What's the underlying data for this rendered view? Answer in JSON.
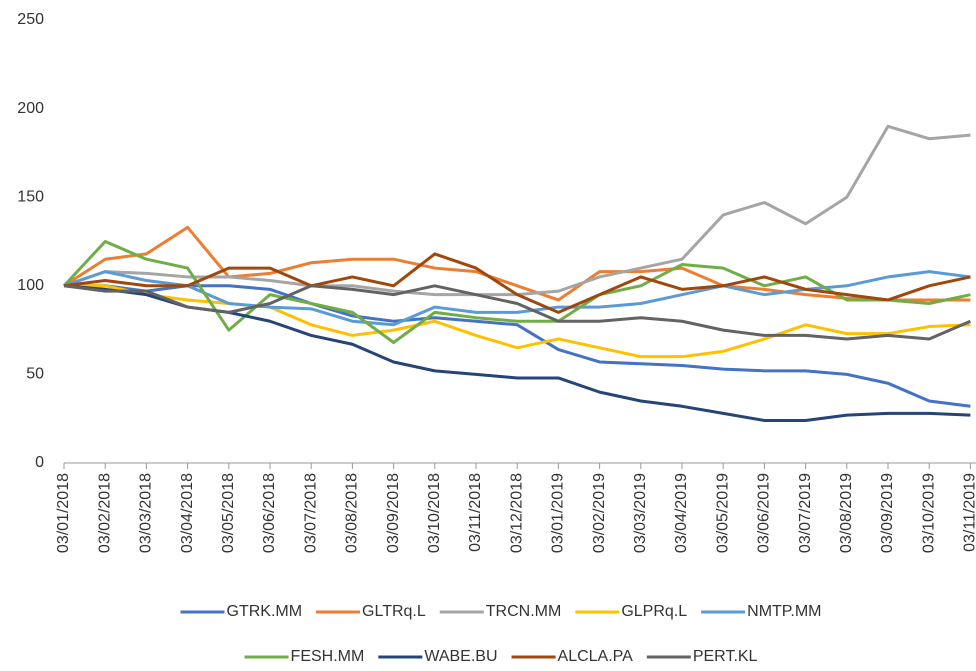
{
  "chart_data": {
    "type": "line",
    "categories": [
      "03/01/2018",
      "03/02/2018",
      "03/03/2018",
      "03/04/2018",
      "03/05/2018",
      "03/06/2018",
      "03/07/2018",
      "03/08/2018",
      "03/09/2018",
      "03/10/2018",
      "03/11/2018",
      "03/12/2018",
      "03/01/2019",
      "03/02/2019",
      "03/03/2019",
      "03/04/2019",
      "03/05/2019",
      "03/06/2019",
      "03/07/2019",
      "03/08/2019",
      "03/09/2019",
      "03/10/2019",
      "03/11/2019"
    ],
    "series": [
      {
        "name": "GTRK.MM",
        "color": "#4472c4",
        "values": [
          100,
          100,
          97,
          100,
          100,
          98,
          90,
          83,
          80,
          82,
          80,
          78,
          64,
          57,
          56,
          55,
          53,
          52,
          52,
          50,
          45,
          35,
          32
        ]
      },
      {
        "name": "GLTRq.L",
        "color": "#ed7d31",
        "values": [
          100,
          115,
          118,
          133,
          105,
          107,
          113,
          115,
          115,
          110,
          108,
          100,
          92,
          108,
          108,
          110,
          100,
          98,
          95,
          93,
          92,
          92,
          92
        ]
      },
      {
        "name": "TRCN.MM",
        "color": "#a5a5a5",
        "values": [
          100,
          108,
          107,
          105,
          105,
          103,
          100,
          100,
          97,
          95,
          95,
          95,
          97,
          105,
          110,
          115,
          140,
          147,
          135,
          150,
          190,
          183,
          185
        ]
      },
      {
        "name": "GLPRq.L",
        "color": "#ffc000",
        "values": [
          100,
          100,
          95,
          92,
          90,
          88,
          78,
          72,
          75,
          80,
          72,
          65,
          70,
          65,
          60,
          60,
          63,
          70,
          78,
          73,
          73,
          77,
          78
        ]
      },
      {
        "name": "NMTP.MM",
        "color": "#5b9bd5",
        "values": [
          100,
          108,
          103,
          100,
          90,
          88,
          87,
          80,
          78,
          88,
          85,
          85,
          88,
          88,
          90,
          95,
          100,
          95,
          98,
          100,
          105,
          108,
          105
        ]
      },
      {
        "name": "FESH.MM",
        "color": "#70ad47",
        "values": [
          100,
          125,
          115,
          110,
          75,
          95,
          90,
          85,
          68,
          85,
          82,
          80,
          80,
          95,
          100,
          112,
          110,
          100,
          105,
          92,
          92,
          90,
          95
        ]
      },
      {
        "name": "WABE.BU",
        "color": "#264478",
        "values": [
          100,
          98,
          95,
          88,
          85,
          80,
          72,
          67,
          57,
          52,
          50,
          48,
          48,
          40,
          35,
          32,
          28,
          24,
          24,
          27,
          28,
          28,
          27
        ]
      },
      {
        "name": "ALCLA.PA",
        "color": "#9e480e",
        "values": [
          100,
          103,
          100,
          100,
          110,
          110,
          100,
          105,
          100,
          118,
          110,
          95,
          85,
          95,
          105,
          98,
          100,
          105,
          98,
          95,
          92,
          100,
          105
        ]
      },
      {
        "name": "PERT.KL",
        "color": "#636363",
        "values": [
          100,
          97,
          97,
          88,
          85,
          90,
          100,
          98,
          95,
          100,
          95,
          90,
          80,
          80,
          82,
          80,
          75,
          72,
          72,
          70,
          72,
          70,
          80
        ]
      }
    ],
    "ylim": [
      0,
      250
    ],
    "yticks": [
      0,
      50,
      100,
      150,
      200,
      250
    ],
    "grid": false
  }
}
